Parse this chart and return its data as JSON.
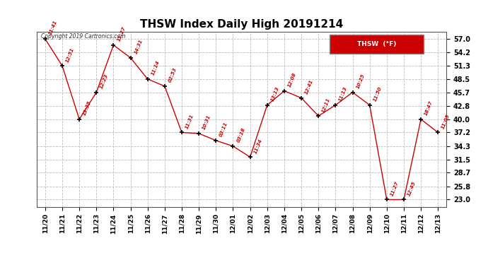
{
  "title": "THSW Index Daily High 20191214",
  "copyright": "Copyright 2019 Cartronics.com",
  "legend_label": "THSW  (°F)",
  "x_labels": [
    "11/20",
    "11/21",
    "11/22",
    "11/23",
    "11/24",
    "11/25",
    "11/26",
    "11/27",
    "11/28",
    "11/29",
    "11/30",
    "12/01",
    "12/02",
    "12/03",
    "12/04",
    "12/05",
    "12/06",
    "12/07",
    "12/08",
    "12/09",
    "12/10",
    "12/11",
    "12/12",
    "12/13"
  ],
  "y_values": [
    57.0,
    51.3,
    40.0,
    45.7,
    55.7,
    53.0,
    48.5,
    47.0,
    37.2,
    37.0,
    35.5,
    34.3,
    32.0,
    43.0,
    46.0,
    44.5,
    40.7,
    43.0,
    45.7,
    43.0,
    23.0,
    23.0,
    40.0,
    37.2
  ],
  "time_labels": [
    "11:41",
    "12:51",
    "13:35",
    "12:23",
    "11:27",
    "14:31",
    "11:14",
    "02:53",
    "11:31",
    "10:31",
    "03:11",
    "03:18",
    "11:34",
    "13:13",
    "12:08",
    "12:41",
    "12:11",
    "11:13",
    "10:25",
    "11:50",
    "11:27",
    "12:45",
    "18:47",
    "11:05"
  ],
  "y_ticks": [
    23.0,
    25.8,
    28.7,
    31.5,
    34.3,
    37.2,
    40.0,
    42.8,
    45.7,
    48.5,
    51.3,
    54.2,
    57.0
  ],
  "y_min": 21.5,
  "y_max": 58.5,
  "line_color": "#cc0000",
  "marker_color": "#000000",
  "bg_color": "#ffffff",
  "grid_color": "#bbbbbb",
  "title_fontsize": 11,
  "legend_bg": "#cc0000",
  "legend_text_color": "#ffffff"
}
